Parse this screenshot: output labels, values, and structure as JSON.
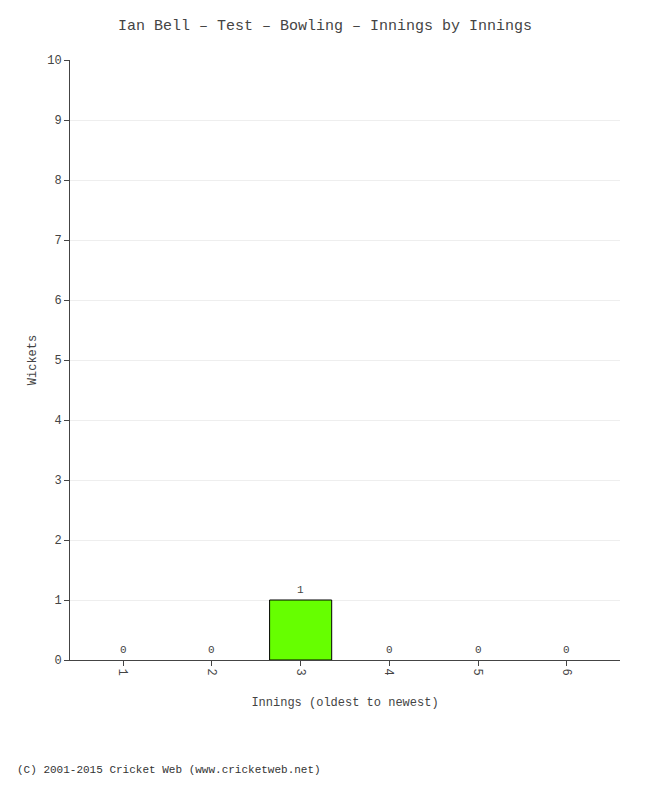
{
  "chart_data": {
    "type": "bar",
    "title": "Ian Bell – Test – Bowling – Innings by Innings",
    "x_label": "Innings (oldest to newest)",
    "y_label": "Wickets",
    "x": [
      1,
      2,
      3,
      4,
      5,
      6
    ],
    "values": [
      0,
      0,
      1,
      0,
      0,
      0
    ],
    "colors": [
      "#ffffff",
      "#ffffff",
      "#66ff00",
      "#ffffff",
      "#ffffff",
      "#ffffff"
    ],
    "xlim": [
      0.4,
      6.6
    ],
    "xticks": [
      1,
      2,
      3,
      4,
      5,
      6
    ],
    "ylim": [
      0,
      10
    ],
    "yticks": [
      0,
      1,
      2,
      3,
      4,
      5,
      6,
      7,
      8,
      9,
      10
    ],
    "grid": true,
    "data_labels": true,
    "annotations": [
      "(C) 2001-2015 Cricket Web (www.cricketweb.net)"
    ]
  }
}
